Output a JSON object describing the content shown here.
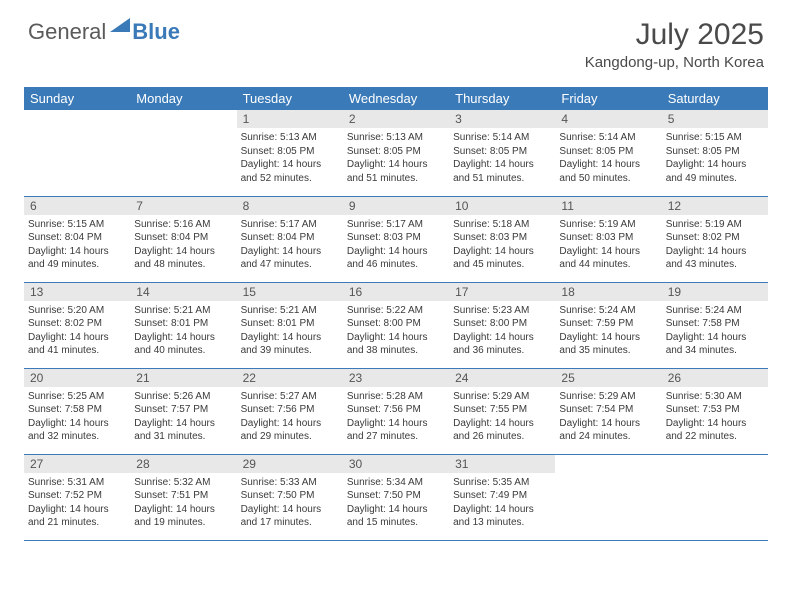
{
  "logo": {
    "text1": "General",
    "text2": "Blue"
  },
  "title": "July 2025",
  "location": "Kangdong-up, North Korea",
  "colors": {
    "header_bg": "#3a7ab8",
    "header_text": "#ffffff",
    "daynum_bg": "#e8e8e8",
    "border": "#3a7ab8",
    "logo_gray": "#5a5a5a",
    "logo_blue": "#3a7ab8"
  },
  "weekdays": [
    "Sunday",
    "Monday",
    "Tuesday",
    "Wednesday",
    "Thursday",
    "Friday",
    "Saturday"
  ],
  "weeks": [
    [
      null,
      null,
      {
        "n": "1",
        "sr": "5:13 AM",
        "ss": "8:05 PM",
        "dl": "14 hours and 52 minutes."
      },
      {
        "n": "2",
        "sr": "5:13 AM",
        "ss": "8:05 PM",
        "dl": "14 hours and 51 minutes."
      },
      {
        "n": "3",
        "sr": "5:14 AM",
        "ss": "8:05 PM",
        "dl": "14 hours and 51 minutes."
      },
      {
        "n": "4",
        "sr": "5:14 AM",
        "ss": "8:05 PM",
        "dl": "14 hours and 50 minutes."
      },
      {
        "n": "5",
        "sr": "5:15 AM",
        "ss": "8:05 PM",
        "dl": "14 hours and 49 minutes."
      }
    ],
    [
      {
        "n": "6",
        "sr": "5:15 AM",
        "ss": "8:04 PM",
        "dl": "14 hours and 49 minutes."
      },
      {
        "n": "7",
        "sr": "5:16 AM",
        "ss": "8:04 PM",
        "dl": "14 hours and 48 minutes."
      },
      {
        "n": "8",
        "sr": "5:17 AM",
        "ss": "8:04 PM",
        "dl": "14 hours and 47 minutes."
      },
      {
        "n": "9",
        "sr": "5:17 AM",
        "ss": "8:03 PM",
        "dl": "14 hours and 46 minutes."
      },
      {
        "n": "10",
        "sr": "5:18 AM",
        "ss": "8:03 PM",
        "dl": "14 hours and 45 minutes."
      },
      {
        "n": "11",
        "sr": "5:19 AM",
        "ss": "8:03 PM",
        "dl": "14 hours and 44 minutes."
      },
      {
        "n": "12",
        "sr": "5:19 AM",
        "ss": "8:02 PM",
        "dl": "14 hours and 43 minutes."
      }
    ],
    [
      {
        "n": "13",
        "sr": "5:20 AM",
        "ss": "8:02 PM",
        "dl": "14 hours and 41 minutes."
      },
      {
        "n": "14",
        "sr": "5:21 AM",
        "ss": "8:01 PM",
        "dl": "14 hours and 40 minutes."
      },
      {
        "n": "15",
        "sr": "5:21 AM",
        "ss": "8:01 PM",
        "dl": "14 hours and 39 minutes."
      },
      {
        "n": "16",
        "sr": "5:22 AM",
        "ss": "8:00 PM",
        "dl": "14 hours and 38 minutes."
      },
      {
        "n": "17",
        "sr": "5:23 AM",
        "ss": "8:00 PM",
        "dl": "14 hours and 36 minutes."
      },
      {
        "n": "18",
        "sr": "5:24 AM",
        "ss": "7:59 PM",
        "dl": "14 hours and 35 minutes."
      },
      {
        "n": "19",
        "sr": "5:24 AM",
        "ss": "7:58 PM",
        "dl": "14 hours and 34 minutes."
      }
    ],
    [
      {
        "n": "20",
        "sr": "5:25 AM",
        "ss": "7:58 PM",
        "dl": "14 hours and 32 minutes."
      },
      {
        "n": "21",
        "sr": "5:26 AM",
        "ss": "7:57 PM",
        "dl": "14 hours and 31 minutes."
      },
      {
        "n": "22",
        "sr": "5:27 AM",
        "ss": "7:56 PM",
        "dl": "14 hours and 29 minutes."
      },
      {
        "n": "23",
        "sr": "5:28 AM",
        "ss": "7:56 PM",
        "dl": "14 hours and 27 minutes."
      },
      {
        "n": "24",
        "sr": "5:29 AM",
        "ss": "7:55 PM",
        "dl": "14 hours and 26 minutes."
      },
      {
        "n": "25",
        "sr": "5:29 AM",
        "ss": "7:54 PM",
        "dl": "14 hours and 24 minutes."
      },
      {
        "n": "26",
        "sr": "5:30 AM",
        "ss": "7:53 PM",
        "dl": "14 hours and 22 minutes."
      }
    ],
    [
      {
        "n": "27",
        "sr": "5:31 AM",
        "ss": "7:52 PM",
        "dl": "14 hours and 21 minutes."
      },
      {
        "n": "28",
        "sr": "5:32 AM",
        "ss": "7:51 PM",
        "dl": "14 hours and 19 minutes."
      },
      {
        "n": "29",
        "sr": "5:33 AM",
        "ss": "7:50 PM",
        "dl": "14 hours and 17 minutes."
      },
      {
        "n": "30",
        "sr": "5:34 AM",
        "ss": "7:50 PM",
        "dl": "14 hours and 15 minutes."
      },
      {
        "n": "31",
        "sr": "5:35 AM",
        "ss": "7:49 PM",
        "dl": "14 hours and 13 minutes."
      },
      null,
      null
    ]
  ],
  "labels": {
    "sunrise": "Sunrise: ",
    "sunset": "Sunset: ",
    "daylight": "Daylight: "
  }
}
